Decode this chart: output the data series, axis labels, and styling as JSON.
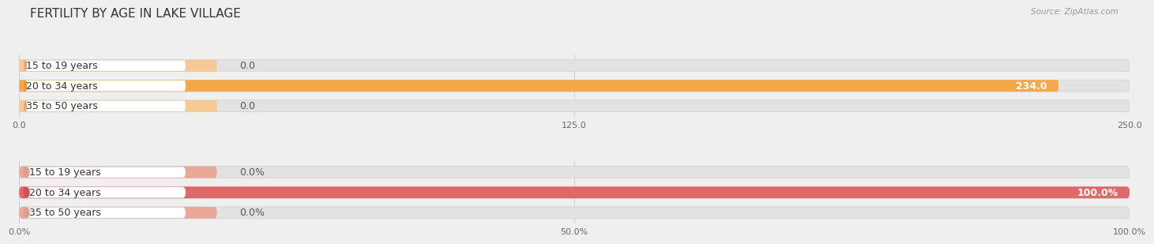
{
  "title": "FERTILITY BY AGE IN LAKE VILLAGE",
  "source": "Source: ZipAtlas.com",
  "top_chart": {
    "categories": [
      "15 to 19 years",
      "20 to 34 years",
      "35 to 50 years"
    ],
    "values": [
      0.0,
      234.0,
      0.0
    ],
    "max_val": 250.0,
    "xticks": [
      0.0,
      125.0,
      250.0
    ],
    "xtick_labels": [
      "0.0",
      "125.0",
      "250.0"
    ],
    "bar_color_main": "#F5A848",
    "bar_color_light": "#F5C896",
    "dot_color_zero": "#E8A878",
    "dot_color_full": "#F09030"
  },
  "bottom_chart": {
    "categories": [
      "15 to 19 years",
      "20 to 34 years",
      "35 to 50 years"
    ],
    "values": [
      0.0,
      100.0,
      0.0
    ],
    "max_val": 100.0,
    "xticks": [
      0.0,
      50.0,
      100.0
    ],
    "xtick_labels": [
      "0.0%",
      "50.0%",
      "100.0%"
    ],
    "bar_color_main": "#E06868",
    "bar_color_light": "#EAA898",
    "dot_color_zero": "#DDA090",
    "dot_color_full": "#D05050"
  },
  "bg_color": "#EFEFEF",
  "bar_bg_color": "#E2E2E2",
  "bar_row_bg": "#E8E8E8",
  "white_label_color": "#FFFFFF",
  "title_fontsize": 11,
  "label_fontsize": 9,
  "tick_fontsize": 8,
  "source_fontsize": 7.5
}
